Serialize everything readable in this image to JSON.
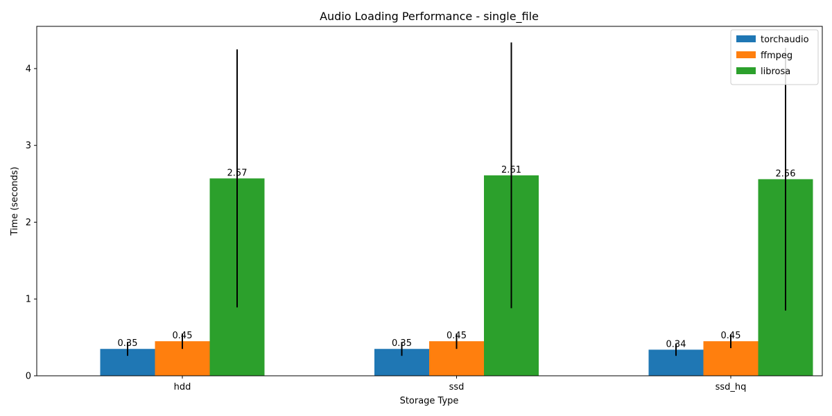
{
  "chart_data": {
    "type": "bar",
    "title": "Audio Loading Performance - single_file",
    "xlabel": "Storage Type",
    "ylabel": "Time (seconds)",
    "categories": [
      "hdd",
      "ssd",
      "ssd_hq"
    ],
    "ylim": [
      0,
      4.55
    ],
    "yticks": [
      0,
      1,
      2,
      3,
      4
    ],
    "grid": false,
    "legend_position": "top-right",
    "series": [
      {
        "name": "torchaudio",
        "color": "#1f77b4",
        "values": [
          0.35,
          0.35,
          0.34
        ],
        "errors": [
          0.09,
          0.09,
          0.08
        ],
        "labels": [
          "0.35",
          "0.35",
          "0.34"
        ]
      },
      {
        "name": "ffmpeg",
        "color": "#ff7f0e",
        "values": [
          0.45,
          0.45,
          0.45
        ],
        "errors": [
          0.1,
          0.1,
          0.09
        ],
        "labels": [
          "0.45",
          "0.45",
          "0.45"
        ]
      },
      {
        "name": "librosa",
        "color": "#2ca02c",
        "values": [
          2.57,
          2.61,
          2.56
        ],
        "errors": [
          1.68,
          1.73,
          1.71
        ],
        "labels": [
          "2.57",
          "2.61",
          "2.56"
        ]
      }
    ]
  }
}
